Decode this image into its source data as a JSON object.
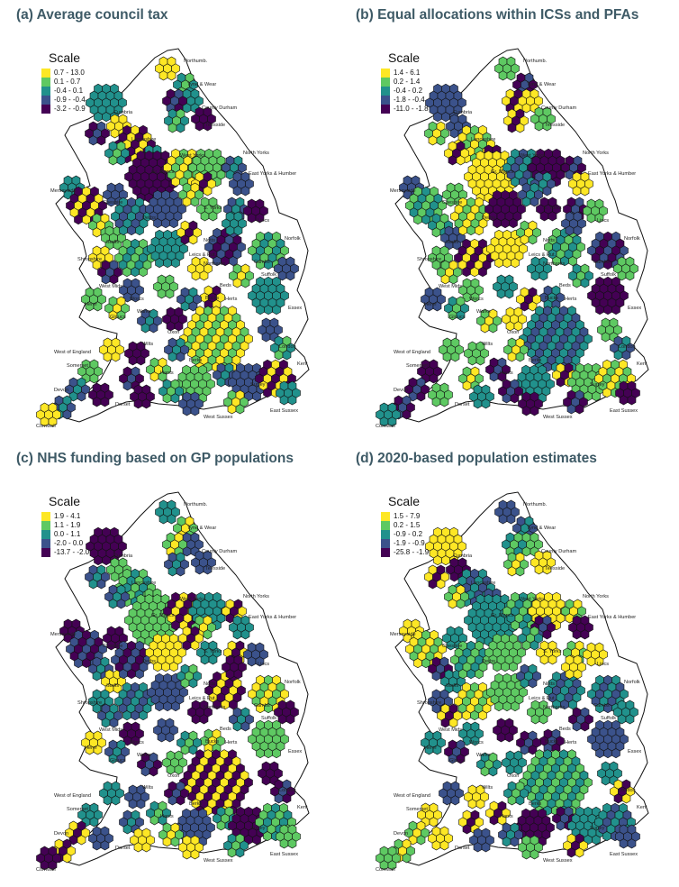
{
  "colors": [
    "#fde725",
    "#5ec962",
    "#21918c",
    "#3b528b",
    "#440154"
  ],
  "panels": [
    {
      "title": "(a) Average council tax",
      "legend_title": "Scale",
      "legend": [
        "0.7 - 13.0",
        "0.1 - 0.7",
        "-0.4 - 0.1",
        "-0.9 - -0.4",
        "-3.2 - -0.9"
      ]
    },
    {
      "title": "(b) Equal allocations within ICSs and PFAs",
      "legend_title": "Scale",
      "legend": [
        "1.4 - 6.1",
        "0.2 - 1.4",
        "-0.4 - 0.2",
        "-1.8 - -0.4",
        "-11.0 - -1.8"
      ]
    },
    {
      "title": "(c) NHS funding based on GP populations",
      "legend_title": "Scale",
      "legend": [
        "1.9 - 4.1",
        "1.1 - 1.9",
        "0.0 - 1.1",
        "-2.0 - 0.0",
        "-13.7 - -2.0"
      ]
    },
    {
      "title": "(d) 2020-based population estimates",
      "legend_title": "Scale",
      "legend": [
        "1.5 - 7.9",
        "0.2 - 1.5",
        "-0.9 - 0.2",
        "-1.9 - -0.9",
        "-25.8 - -1.9"
      ]
    }
  ],
  "regions": [
    "Northumb.",
    "Tyne & Wear",
    "Cumbria",
    "County Durham",
    "Teesside",
    "Lancashire",
    "North Yorks",
    "West Yorks",
    "Gr. Mancs",
    "East Yorks & Humber",
    "Merseyside",
    "Cheshire",
    "S. Yorks",
    "Lincs",
    "Derbs",
    "Staffs",
    "Notts",
    "Norfolk",
    "Shropshire",
    "Leics & Rut.",
    "Northants",
    "Cambs",
    "Suffolk",
    "West Mids",
    "Beds",
    "Herts",
    "Essex",
    "Heref",
    "Worcs",
    "Warks",
    "Bucks",
    "Gloucs",
    "Oxon",
    "London",
    "Wilts",
    "West of England",
    "Berks",
    "Kent",
    "Somerset",
    "Hants",
    "Surrey",
    "Devon",
    "Dorset",
    "East Sussex",
    "West Sussex",
    "Cornwall"
  ]
}
